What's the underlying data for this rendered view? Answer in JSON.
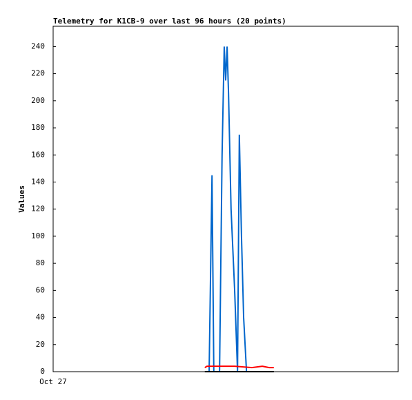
{
  "chart_data": {
    "type": "line",
    "title": "Telemetry for K1CB-9 over last 96 hours (20 points)",
    "y_label": "Values",
    "xlim": [
      0,
      96
    ],
    "xticks": [
      {
        "value": 0,
        "label": "Oct 27"
      }
    ],
    "ylim": [
      0,
      255
    ],
    "yticks": [
      0,
      20,
      40,
      60,
      80,
      100,
      120,
      140,
      160,
      180,
      200,
      220,
      240
    ],
    "series": [
      {
        "color": "#0066cc",
        "x": [
          43.4,
          44.2,
          44.7,
          46.3,
          47.0,
          47.6,
          48.0,
          48.4,
          48.8,
          49.5,
          50.5,
          51.3,
          51.8,
          52.4,
          53.0,
          53.8
        ],
        "values": [
          0,
          145,
          0,
          0,
          160,
          240,
          215,
          240,
          205,
          120,
          60,
          0,
          175,
          100,
          40,
          0
        ]
      },
      {
        "color": "#ff0000",
        "x": [
          42.2,
          42.8,
          50.5,
          55.3,
          58.2,
          60.1,
          61.4
        ],
        "values": [
          3,
          4,
          4,
          3,
          4,
          3,
          3
        ]
      },
      {
        "color": "#000000",
        "x": [
          42.2,
          61.4
        ],
        "values": [
          0,
          0
        ]
      }
    ]
  }
}
